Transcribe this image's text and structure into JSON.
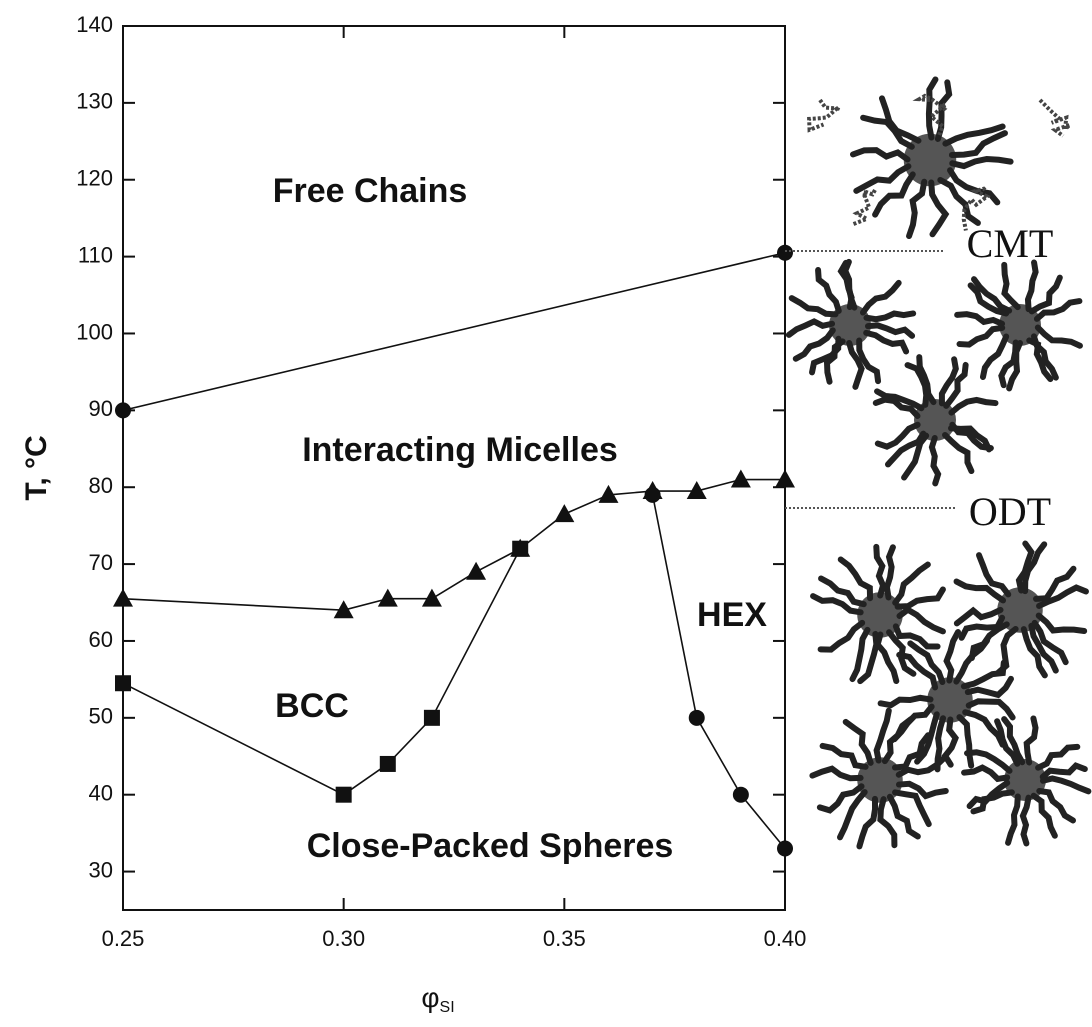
{
  "chart_data": {
    "type": "line",
    "xlabel": "φ",
    "xlabel_subscript": "SI",
    "ylabel": "T, °C",
    "xlim": [
      0.25,
      0.4
    ],
    "ylim": [
      25,
      140
    ],
    "xticks": [
      {
        "value": 0.25,
        "label": "0.25"
      },
      {
        "value": 0.3,
        "label": "0.30"
      },
      {
        "value": 0.35,
        "label": "0.35"
      },
      {
        "value": 0.4,
        "label": "0.40"
      }
    ],
    "yticks": [
      30,
      40,
      50,
      60,
      70,
      80,
      90,
      100,
      110,
      120,
      130,
      140
    ],
    "series": [
      {
        "name": "CMT",
        "marker": "circle",
        "color": "#111111",
        "x": [
          0.25,
          0.4
        ],
        "values": [
          90,
          110.5
        ]
      },
      {
        "name": "ODT",
        "marker": "triangle",
        "color": "#111111",
        "x": [
          0.25,
          0.3,
          0.31,
          0.32,
          0.33,
          0.34,
          0.35,
          0.36,
          0.37,
          0.38,
          0.39,
          0.4
        ],
        "values": [
          65.5,
          64,
          65.5,
          65.5,
          69,
          72,
          76.5,
          79,
          79.5,
          79.5,
          81,
          81
        ]
      },
      {
        "name": "BCC",
        "marker": "square",
        "color": "#111111",
        "x": [
          0.25,
          0.3,
          0.31,
          0.32,
          0.34
        ],
        "values": [
          54.5,
          40,
          44,
          50,
          72
        ]
      },
      {
        "name": "HEX",
        "marker": "circle",
        "color": "#111111",
        "x": [
          0.37,
          0.38,
          0.39,
          0.4
        ],
        "values": [
          79,
          50,
          40,
          33
        ]
      }
    ],
    "annotations": [
      "Free Chains",
      "Interacting Micelles",
      "BCC",
      "Close-Packed Spheres",
      "HEX",
      "CMT",
      "ODT"
    ]
  }
}
